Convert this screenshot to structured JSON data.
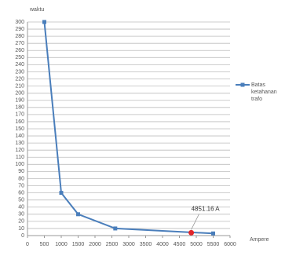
{
  "chart_data": {
    "type": "line",
    "y_label": "waktu",
    "x_label": "Ampere",
    "x": [
      500,
      1000,
      1500,
      2600,
      5500
    ],
    "series": [
      {
        "name": "Batas ketahanan trafo",
        "color": "#4a7ebb",
        "values": [
          300,
          60,
          30,
          10,
          3
        ]
      }
    ],
    "annotation": {
      "text": "4851.16 A",
      "x": 4851.16,
      "y": 4,
      "color": "#e0262b"
    },
    "xlim": [
      0,
      6000
    ],
    "xticks": [
      0,
      500,
      1000,
      1500,
      2000,
      2500,
      3000,
      3500,
      4000,
      4500,
      5000,
      5500,
      6000
    ],
    "ylim": [
      0,
      300
    ],
    "yticks": [
      0,
      10,
      20,
      30,
      40,
      50,
      60,
      70,
      80,
      90,
      100,
      110,
      120,
      130,
      140,
      150,
      160,
      170,
      180,
      190,
      200,
      210,
      220,
      230,
      240,
      250,
      260,
      270,
      280,
      290,
      300
    ],
    "grid": true,
    "legend": "right"
  }
}
